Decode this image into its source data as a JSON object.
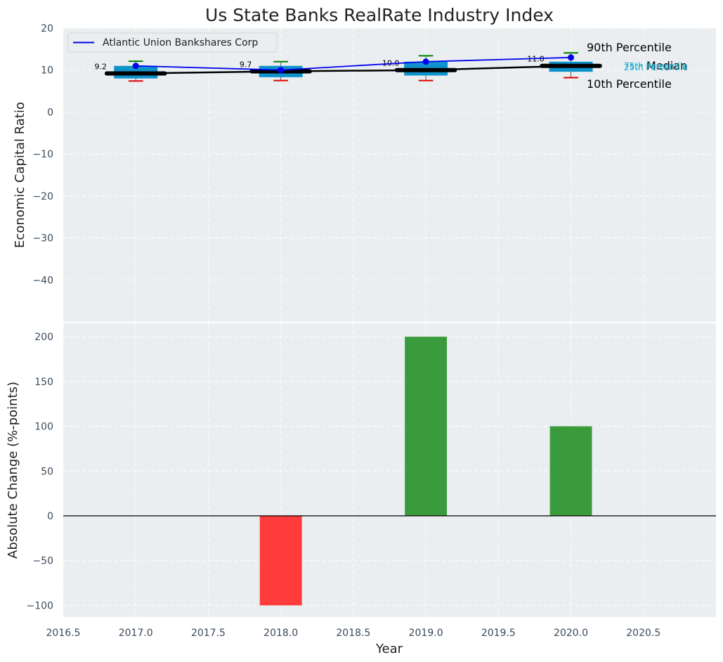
{
  "chart_data": [
    {
      "type": "box-line",
      "title": "Us State Banks RealRate Industry Index",
      "xlabel": "",
      "ylabel": "Economic Capital Ratio",
      "xlim": [
        2016.5,
        2021.0
      ],
      "ylim": [
        -50,
        20
      ],
      "xticks": [
        2017.0,
        2018.0,
        2019.0,
        2020.0
      ],
      "yticks": [
        20,
        10,
        0,
        -10,
        -20,
        -30,
        -40
      ],
      "ytick_labels": [
        "20",
        "10",
        "0",
        "−10",
        "−20",
        "−30",
        "−40"
      ],
      "grid": true,
      "legend": {
        "position": "top-left",
        "entries": [
          "Atlantic Union Bankshares Corp"
        ]
      },
      "boxes": [
        {
          "x": 2017,
          "p10": 7.4,
          "p25": 8.0,
          "median": 9.2,
          "p75": 11.0,
          "p90": 12.1,
          "median_label": "9.2"
        },
        {
          "x": 2018,
          "p10": 7.5,
          "p25": 8.3,
          "median": 9.7,
          "p75": 11.0,
          "p90": 12.0,
          "median_label": "9.7"
        },
        {
          "x": 2019,
          "p10": 7.5,
          "p25": 8.7,
          "median": 10.0,
          "p75": 12.0,
          "p90": 13.4,
          "median_label": "10.0"
        },
        {
          "x": 2020,
          "p10": 8.2,
          "p25": 9.6,
          "median": 11.0,
          "p75": 12.0,
          "p90": 14.1,
          "median_label": "11.0"
        }
      ],
      "series": [
        {
          "name": "Atlantic Union Bankshares Corp",
          "x": [
            2017,
            2018,
            2019,
            2020
          ],
          "values": [
            11.0,
            10.0,
            12.0,
            13.0
          ],
          "color": "#0000ee"
        }
      ],
      "annotations": {
        "p90": "90th Percentile",
        "median": "Median",
        "p10": "10th Percentile",
        "p75": "75th Percentile",
        "p25": "25th Percentile"
      }
    },
    {
      "type": "bar",
      "xlabel": "Year",
      "ylabel": "Absolute Change (%-points)",
      "xlim": [
        2016.5,
        2021.0
      ],
      "ylim": [
        -113,
        215
      ],
      "xticks": [
        2016.5,
        2017.0,
        2017.5,
        2018.0,
        2018.5,
        2019.0,
        2019.5,
        2020.0,
        2020.5
      ],
      "xtick_labels": [
        "2016.5",
        "2017.0",
        "2017.5",
        "2018.0",
        "2018.5",
        "2019.0",
        "2019.5",
        "2020.0",
        "2020.5"
      ],
      "yticks": [
        200,
        150,
        100,
        50,
        0,
        -50,
        -100
      ],
      "ytick_labels": [
        "200",
        "150",
        "100",
        "50",
        "0",
        "−50",
        "−100"
      ],
      "grid": true,
      "x": [
        2018,
        2019,
        2020
      ],
      "values": [
        -100,
        200,
        100
      ],
      "colors": [
        "#ff3b3b",
        "#3a9b3c",
        "#3a9b3c"
      ]
    }
  ]
}
